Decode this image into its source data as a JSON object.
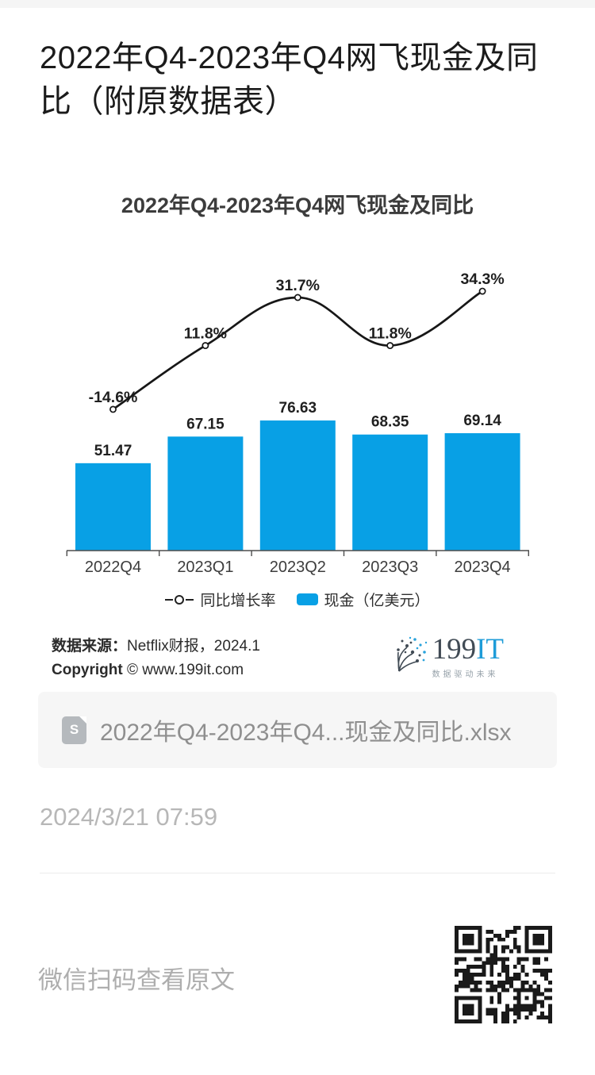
{
  "article": {
    "title": "2022年Q4-2023年Q4网飞现金及同比（附原数据表）",
    "timestamp": "2024/3/21 07:59",
    "footer_hint": "微信扫码查看原文"
  },
  "attachment": {
    "filename": "2022年Q4-2023年Q4...现金及同比.xlsx",
    "icon_letter": "S"
  },
  "chart": {
    "title": "2022年Q4-2023年Q4网飞现金及同比",
    "legend": {
      "line_label": "同比增长率",
      "bar_label": "现金（亿美元）"
    },
    "source": {
      "label": "数据来源：",
      "value": "Netflix财报，2024.1",
      "copyright_label": "Copyright",
      "copyright_value": "© www.199it.com"
    },
    "logo": {
      "name_dark": "199",
      "name_blue": "IT",
      "tagline": "数据驱动未来"
    },
    "colors": {
      "bar": "#08a0e5",
      "line": "#171717",
      "label": "#1f1f1f",
      "axis": "#4d4d4d",
      "category": "#3d3d3d"
    }
  },
  "chart_data": {
    "type": "combo",
    "title": "2022年Q4-2023年Q4网飞现金及同比",
    "categories": [
      "2022Q4",
      "2023Q1",
      "2023Q2",
      "2023Q3",
      "2023Q4"
    ],
    "series": [
      {
        "name": "现金（亿美元）",
        "type": "bar",
        "values": [
          51.47,
          67.15,
          76.63,
          68.35,
          69.14
        ],
        "labels": [
          "51.47",
          "67.15",
          "76.63",
          "68.35",
          "69.14"
        ]
      },
      {
        "name": "同比增长率",
        "type": "line",
        "values": [
          -14.6,
          11.8,
          31.7,
          11.8,
          34.3
        ],
        "labels": [
          "-14.6%",
          "11.8%",
          "31.7%",
          "11.8%",
          "34.3%"
        ]
      }
    ],
    "xlabel": "",
    "ylabel": "",
    "bar_ylim": [
      0,
      85
    ],
    "line_ylim_percent": [
      -20,
      45
    ],
    "grid": false,
    "y_axis_visible": false,
    "legend_position": "bottom"
  }
}
